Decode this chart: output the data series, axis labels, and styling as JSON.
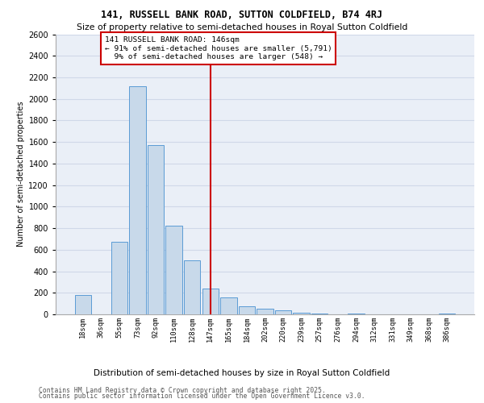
{
  "title1": "141, RUSSELL BANK ROAD, SUTTON COLDFIELD, B74 4RJ",
  "title2": "Size of property relative to semi-detached houses in Royal Sutton Coldfield",
  "xlabel": "Distribution of semi-detached houses by size in Royal Sutton Coldfield",
  "ylabel": "Number of semi-detached properties",
  "categories": [
    "18sqm",
    "36sqm",
    "55sqm",
    "73sqm",
    "92sqm",
    "110sqm",
    "128sqm",
    "147sqm",
    "165sqm",
    "184sqm",
    "202sqm",
    "220sqm",
    "239sqm",
    "257sqm",
    "276sqm",
    "294sqm",
    "312sqm",
    "331sqm",
    "349sqm",
    "368sqm",
    "386sqm"
  ],
  "values": [
    180,
    0,
    670,
    2120,
    1570,
    820,
    500,
    240,
    155,
    75,
    55,
    35,
    15,
    5,
    0,
    5,
    0,
    0,
    0,
    0,
    5
  ],
  "bar_color": "#c8d9ea",
  "bar_edge_color": "#5b9bd5",
  "vline_idx": 7,
  "smaller_pct": "91%",
  "smaller_count": "5,791",
  "larger_pct": "9%",
  "larger_count": "548",
  "vline_color": "#cc0000",
  "annotation_box_color": "#cc0000",
  "ylim": [
    0,
    2600
  ],
  "yticks": [
    0,
    200,
    400,
    600,
    800,
    1000,
    1200,
    1400,
    1600,
    1800,
    2000,
    2200,
    2400,
    2600
  ],
  "grid_color": "#d0d8e8",
  "bg_color": "#eaeff7",
  "footer1": "Contains HM Land Registry data © Crown copyright and database right 2025.",
  "footer2": "Contains public sector information licensed under the Open Government Licence v3.0."
}
